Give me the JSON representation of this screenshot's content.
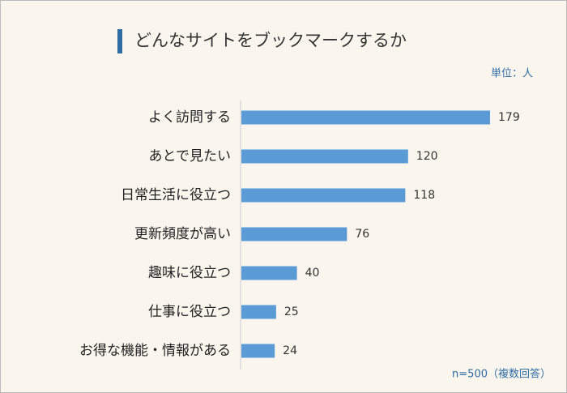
{
  "chart_data": {
    "type": "bar",
    "orientation": "horizontal",
    "title": "どんなサイトをブックマークするか",
    "unit_label": "単位：人",
    "note": "n=500（複数回答）",
    "categories": [
      "よく訪問する",
      "あとで見たい",
      "日常生活に役立つ",
      "更新頻度が高い",
      "趣味に役立つ",
      "仕事に役立つ",
      "お得な機能・情報がある"
    ],
    "values": [
      179,
      120,
      118,
      76,
      40,
      25,
      24
    ],
    "color": "#5b9bd5"
  }
}
